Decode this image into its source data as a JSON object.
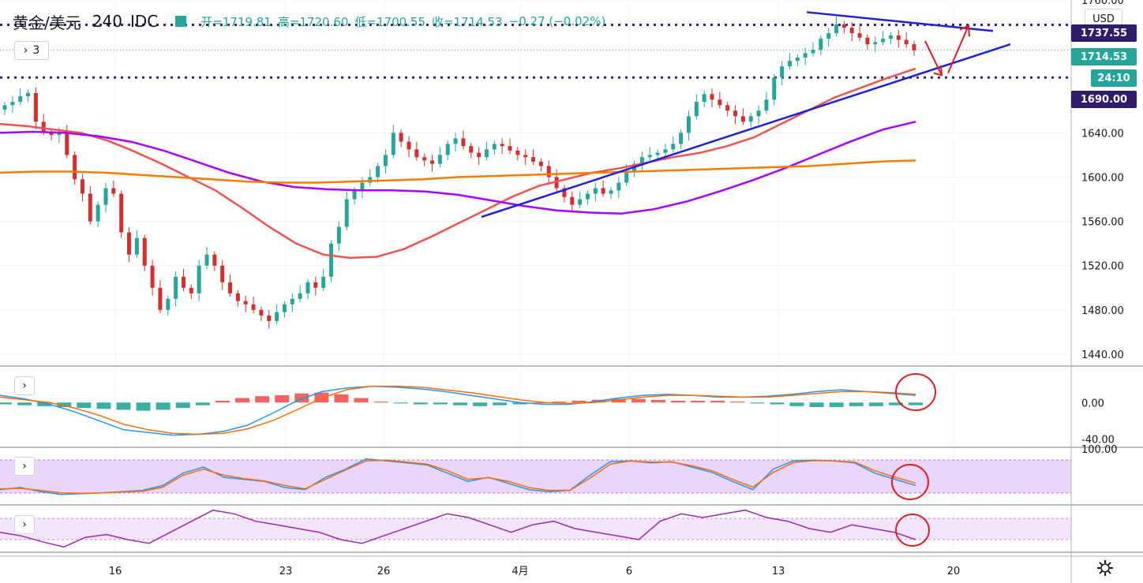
{
  "header": {
    "symbol": "黄金/美元",
    "interval": "240",
    "source": "IDC",
    "open": "开=1719.81",
    "high": "高=1720.60",
    "low": "低=1700.55",
    "close": "收=1714.53",
    "change": "−0.27 (−0.02%)",
    "collapsed_count": "3"
  },
  "toolbar": {
    "currency": "USD"
  },
  "price_badges": {
    "level_high": "1737.55",
    "last_price": "1714.53",
    "countdown": "24:10",
    "level_low": "1690.00"
  },
  "colors": {
    "up": "#26a69a",
    "down": "#d32f2f",
    "ma_fast": "#ef5350",
    "ma_mid": "#aa00ff",
    "ma_slow": "#f57c00",
    "trendline": "#1e22d6",
    "level": "#3f1f8f",
    "annotation": "#e01b24"
  },
  "icons": [
    "chevron-right-icon",
    "gear-icon",
    "candle-up-icon"
  ],
  "chart_data": [
    {
      "type": "candlestick",
      "title": "黄金/美元 240 IDC",
      "ylim": [
        1430,
        1760
      ],
      "y_ticks": [
        1440.0,
        1480.0,
        1520.0,
        1560.0,
        1600.0,
        1640.0,
        1760.0
      ],
      "x_ticks": [
        "16",
        "23",
        "26",
        "4月",
        "6",
        "13",
        "20"
      ],
      "horizontal_levels": [
        1737.55,
        1690.0
      ],
      "last_price": 1714.53,
      "close_series": [
        1665,
        1668,
        1673,
        1676,
        1650,
        1641,
        1638,
        1640,
        1620,
        1598,
        1585,
        1560,
        1575,
        1590,
        1585,
        1550,
        1530,
        1545,
        1520,
        1500,
        1480,
        1490,
        1510,
        1500,
        1495,
        1520,
        1530,
        1520,
        1505,
        1495,
        1488,
        1485,
        1480,
        1475,
        1470,
        1478,
        1485,
        1490,
        1495,
        1505,
        1500,
        1510,
        1540,
        1555,
        1580,
        1588,
        1595,
        1600,
        1610,
        1620,
        1640,
        1632,
        1625,
        1618,
        1615,
        1612,
        1620,
        1630,
        1635,
        1628,
        1622,
        1618,
        1625,
        1630,
        1628,
        1624,
        1620,
        1618,
        1614,
        1610,
        1600,
        1590,
        1582,
        1575,
        1580,
        1585,
        1590,
        1585,
        1588,
        1595,
        1605,
        1612,
        1618,
        1620,
        1622,
        1625,
        1630,
        1640,
        1655,
        1668,
        1675,
        1670,
        1665,
        1660,
        1655,
        1650,
        1655,
        1660,
        1670,
        1690,
        1700,
        1705,
        1708,
        1712,
        1715,
        1725,
        1730,
        1738,
        1735,
        1730,
        1726,
        1720,
        1722,
        1725,
        1728,
        1724,
        1720,
        1714.53
      ],
      "ma_fast": [
        1648,
        1646,
        1643,
        1640,
        1633,
        1623,
        1612,
        1600,
        1588,
        1572,
        1555,
        1540,
        1530,
        1527,
        1528,
        1535,
        1546,
        1558,
        1570,
        1582,
        1592,
        1598,
        1604,
        1608,
        1613,
        1618,
        1622,
        1628,
        1636,
        1648,
        1660,
        1672,
        1681,
        1690,
        1698
      ],
      "ma_mid": [
        1640,
        1641,
        1640,
        1637,
        1632,
        1624,
        1614,
        1604,
        1596,
        1591,
        1589,
        1588,
        1588,
        1587,
        1584,
        1579,
        1574,
        1570,
        1568,
        1567,
        1571,
        1578,
        1587,
        1597,
        1608,
        1620,
        1632,
        1643,
        1650
      ],
      "ma_slow": [
        1604,
        1605,
        1605,
        1604,
        1602,
        1600,
        1598,
        1596,
        1595,
        1595,
        1596,
        1597,
        1598,
        1600,
        1601,
        1602,
        1603,
        1604,
        1605,
        1606,
        1607,
        1608,
        1609,
        1610,
        1612,
        1614,
        1615
      ],
      "trendlines": [
        {
          "from": [
            1564,
            "4月"
          ],
          "to": [
            1720,
            "20"
          ]
        },
        {
          "from": [
            1749,
            "13"
          ],
          "to": [
            1732,
            "20"
          ]
        }
      ]
    },
    {
      "type": "bar",
      "title": "MACD",
      "y_ticks": [
        0.0,
        -40.0
      ],
      "ylim": [
        -45,
        35
      ],
      "histogram": [
        -2,
        -3,
        -4,
        -5,
        -6,
        -7,
        -8,
        -9,
        -8,
        -6,
        -3,
        2,
        5,
        7,
        8,
        10,
        11,
        9,
        5,
        1,
        -1,
        -2,
        -2,
        -3,
        -4,
        -3,
        -2,
        0,
        1,
        2,
        3,
        4,
        4,
        3,
        2,
        2,
        2,
        1,
        -1,
        -2,
        -4,
        -5,
        -5,
        -4,
        -4,
        -3,
        -3
      ],
      "macd_line": [
        8,
        4,
        -2,
        -10,
        -20,
        -30,
        -33,
        -36,
        -35,
        -32,
        -25,
        -12,
        2,
        12,
        16,
        18,
        17,
        15,
        12,
        8,
        4,
        0,
        -2,
        -2,
        1,
        5,
        8,
        9,
        8,
        6,
        6,
        7,
        9,
        12,
        14,
        12,
        10,
        8
      ],
      "signal_line": [
        6,
        3,
        0,
        -6,
        -14,
        -24,
        -30,
        -34,
        -35,
        -34,
        -29,
        -20,
        -8,
        5,
        14,
        18,
        18,
        17,
        14,
        11,
        7,
        3,
        0,
        -1,
        0,
        3,
        6,
        8,
        8,
        7,
        6,
        6,
        8,
        10,
        12,
        12,
        11,
        9
      ]
    },
    {
      "type": "line",
      "title": "Stochastic",
      "y_ticks": [
        100.0
      ],
      "ylim": [
        0,
        100
      ],
      "k_line": [
        20,
        25,
        15,
        8,
        10,
        12,
        15,
        18,
        30,
        60,
        75,
        50,
        45,
        40,
        25,
        20,
        50,
        70,
        95,
        90,
        85,
        80,
        60,
        40,
        50,
        35,
        20,
        15,
        18,
        55,
        88,
        90,
        85,
        88,
        75,
        62,
        40,
        20,
        70,
        90,
        92,
        90,
        85,
        60,
        45,
        30
      ],
      "d_line": [
        22,
        23,
        18,
        12,
        11,
        12,
        14,
        16,
        26,
        55,
        70,
        55,
        47,
        41,
        30,
        22,
        45,
        68,
        90,
        92,
        87,
        82,
        66,
        45,
        49,
        40,
        25,
        18,
        18,
        48,
        82,
        90,
        87,
        87,
        78,
        66,
        45,
        26,
        62,
        86,
        91,
        90,
        87,
        66,
        50,
        36
      ]
    },
    {
      "type": "line",
      "title": "RSI",
      "rsi_line": [
        55,
        50,
        42,
        35,
        48,
        52,
        45,
        40,
        55,
        70,
        85,
        80,
        70,
        65,
        60,
        55,
        45,
        40,
        50,
        60,
        70,
        80,
        75,
        65,
        55,
        65,
        70,
        60,
        55,
        50,
        45,
        70,
        80,
        75,
        80,
        85,
        75,
        70,
        60,
        55,
        65,
        60,
        55,
        45
      ]
    }
  ]
}
